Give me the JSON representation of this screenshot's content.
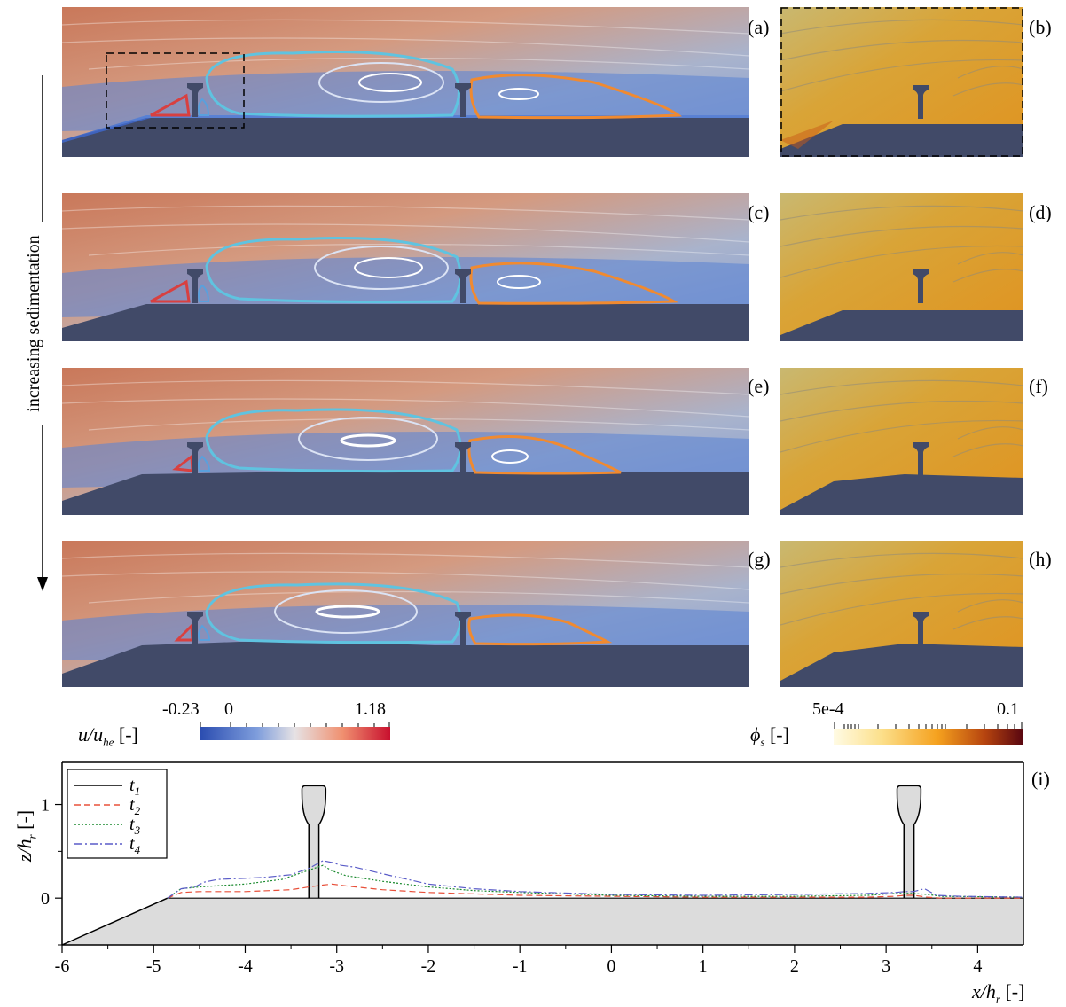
{
  "panels": {
    "flow": [
      "(a)",
      "(c)",
      "(e)",
      "(g)"
    ],
    "phi": [
      "(b)",
      "(d)",
      "(f)",
      "(h)"
    ],
    "profile": "(i)"
  },
  "arrow_label": "increasing sedimentation",
  "colorbar_u": {
    "symbol": "u/u",
    "subscript": "he",
    "unit": "[-]",
    "ticks": [
      "-0.23",
      "0",
      "1.18"
    ],
    "colors": [
      "#2a4cb0",
      "#6c8fd6",
      "#e9e3e2",
      "#f08a6a",
      "#c8102e"
    ]
  },
  "colorbar_phi": {
    "symbol": "ϕ",
    "subscript": "s",
    "unit": "[-]",
    "ticks": [
      "5e-4",
      "0.1"
    ],
    "colors": [
      "#fff8d8",
      "#fbd67a",
      "#f49a1c",
      "#b04410",
      "#5a0710"
    ]
  },
  "chart_data": {
    "type": "line",
    "xlabel": "x/h",
    "xlabel_sub": "r",
    "ylabel": "z/h",
    "ylabel_sub": "r",
    "unit": "[-]",
    "xlim": [
      -6,
      4.5
    ],
    "ylim": [
      -0.5,
      1.45
    ],
    "xticks": [
      -6,
      -5,
      -4,
      -3,
      -2,
      -1,
      0,
      1,
      2,
      3,
      4
    ],
    "yticks": [
      0,
      1
    ],
    "legend_position": "top-left",
    "series": [
      {
        "name": "t",
        "sub": "1",
        "color": "#000000",
        "dash": "",
        "x": [
          -4.85,
          -3.3,
          -3.2,
          3.2,
          3.3,
          4.5
        ],
        "y": [
          0,
          0,
          0,
          0,
          0,
          0
        ]
      },
      {
        "name": "t",
        "sub": "2",
        "color": "#e8503a",
        "dash": "7,4",
        "x": [
          -4.85,
          -4.7,
          -4.5,
          -4.0,
          -3.5,
          -3.3,
          -3.15,
          -3.05,
          -2.9,
          -2.5,
          -2.0,
          -1.0,
          0.0,
          1.0,
          2.0,
          2.8,
          3.1,
          3.2,
          3.3,
          3.45,
          3.6,
          4.5
        ],
        "y": [
          0,
          0.06,
          0.07,
          0.07,
          0.09,
          0.12,
          0.14,
          0.15,
          0.13,
          0.09,
          0.06,
          0.03,
          0.02,
          0.01,
          0.01,
          0.01,
          0.02,
          0.03,
          0.03,
          0.01,
          0,
          0
        ]
      },
      {
        "name": "t",
        "sub": "3",
        "color": "#1a8a2e",
        "dash": "2,2",
        "x": [
          -4.85,
          -4.7,
          -4.5,
          -4.0,
          -3.6,
          -3.3,
          -3.15,
          -3.05,
          -2.9,
          -2.5,
          -2.0,
          -1.5,
          -1.0,
          0.0,
          1.0,
          2.0,
          2.8,
          3.1,
          3.2,
          3.3,
          3.45,
          3.6,
          4.5
        ],
        "y": [
          0,
          0.1,
          0.12,
          0.15,
          0.2,
          0.3,
          0.35,
          0.29,
          0.24,
          0.18,
          0.12,
          0.08,
          0.06,
          0.03,
          0.02,
          0.02,
          0.03,
          0.05,
          0.05,
          0.05,
          0.04,
          0.02,
          0.01
        ]
      },
      {
        "name": "t",
        "sub": "4",
        "color": "#5a5cc8",
        "dash": "9,3,2,3",
        "x": [
          -4.85,
          -4.7,
          -4.55,
          -4.45,
          -4.3,
          -3.8,
          -3.5,
          -3.3,
          -3.15,
          -3.05,
          -2.95,
          -2.8,
          -2.5,
          -2.0,
          -1.5,
          -1.0,
          0.0,
          1.0,
          2.0,
          2.8,
          3.1,
          3.2,
          3.3,
          3.42,
          3.55,
          3.8,
          4.5
        ],
        "y": [
          0,
          0.1,
          0.12,
          0.17,
          0.2,
          0.22,
          0.25,
          0.32,
          0.4,
          0.38,
          0.35,
          0.33,
          0.26,
          0.15,
          0.1,
          0.07,
          0.04,
          0.03,
          0.04,
          0.05,
          0.06,
          0.07,
          0.07,
          0.1,
          0.03,
          0.02,
          0.01
        ]
      }
    ]
  }
}
